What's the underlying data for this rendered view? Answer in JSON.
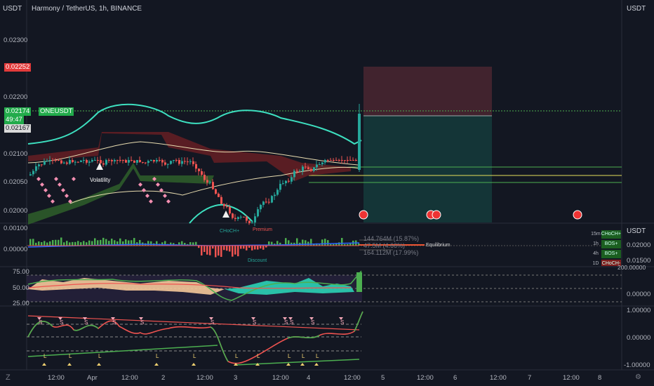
{
  "header": {
    "symbol_title": "Harmony / TetherUS, 1h, BINANCE",
    "left_currency": "USDT",
    "right_currency": "USDT"
  },
  "price_axis": {
    "ticks": [
      "0.02300",
      "0.02200",
      "0.02100",
      "0.02050",
      "0.02000"
    ],
    "tag_stop": "0.02252",
    "tag_last": "0.02174",
    "tag_countdown": "49:47",
    "tag_entry": "0.02167",
    "symbol_badge": "ONEUSDT"
  },
  "osc1_axis": {
    "ticks": [
      "0.00100",
      "0.00000"
    ],
    "right_ticks": [
      "0.02000",
      "0.01500"
    ]
  },
  "rsi_axis": {
    "ticks": [
      "75.00",
      "50.00",
      "25.00"
    ],
    "right_ticks": [
      "200.00000",
      "0.00000"
    ]
  },
  "osc3_axis": {
    "right_ticks": [
      "1.00000",
      "0.00000",
      "-1.00000"
    ]
  },
  "time_axis": [
    "12:00",
    "Apr",
    "12:00",
    "2",
    "12:00",
    "3",
    "12:00",
    "4",
    "12:00",
    "5",
    "12:00",
    "6",
    "12:00",
    "7",
    "12:00",
    "8"
  ],
  "annotations": {
    "volatility": "Volatility",
    "choch": "CHoCH+",
    "premium": "Premium",
    "equilibrium": "Equilibrium",
    "discount": "Discount",
    "vol_1": "144.764M (15.87%)",
    "vol_2": "47.5M (4.66%)",
    "vol_3": "164.112M (17.99%)"
  },
  "mtf_table": [
    {
      "tf": "15m",
      "status": "CHoCH+",
      "color": "#1b5e20"
    },
    {
      "tf": "1h",
      "status": "BOS+",
      "color": "#1b5e20"
    },
    {
      "tf": "4h",
      "status": "BOS+",
      "color": "#1b5e20"
    },
    {
      "tf": "1D",
      "status": "CHoCH-",
      "color": "#7f1d1d"
    }
  ],
  "signals": {
    "short": "S",
    "long": "L"
  },
  "colors": {
    "bull": "#26a69a",
    "bear": "#ef5350",
    "band": "#3de0c0",
    "stop_zone": "#4a2630",
    "target_zone": "#15393a",
    "badge_green": "#22ab4b",
    "badge_red": "#e33a3a"
  }
}
